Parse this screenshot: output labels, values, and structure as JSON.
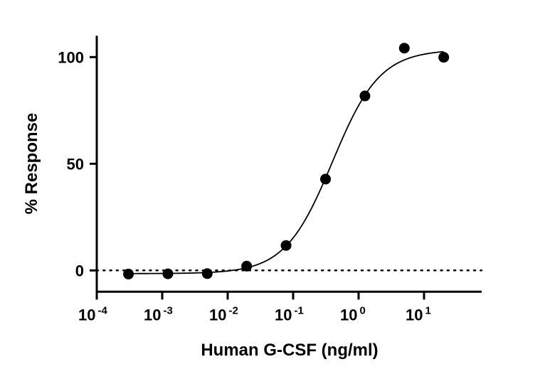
{
  "chart_data": {
    "type": "scatter",
    "title": "",
    "xlabel": "Human G-CSF (ng/ml)",
    "ylabel": "% Response",
    "x_scale": "log",
    "xlim": [
      0.0001,
      30
    ],
    "ylim": [
      -10,
      110
    ],
    "x_ticks": [
      {
        "base": "10",
        "exp": "-4",
        "value": 0.0001
      },
      {
        "base": "10",
        "exp": "-3",
        "value": 0.001
      },
      {
        "base": "10",
        "exp": "-2",
        "value": 0.01
      },
      {
        "base": "10",
        "exp": "-1",
        "value": 0.1
      },
      {
        "base": "10",
        "exp": "0",
        "value": 1
      },
      {
        "base": "10",
        "exp": "1",
        "value": 10
      }
    ],
    "y_ticks": [
      {
        "label": "0",
        "value": 0
      },
      {
        "label": "50",
        "value": 50
      },
      {
        "label": "100",
        "value": 100
      }
    ],
    "grid": false,
    "baseline_dotted": 0,
    "points": {
      "x": [
        0.000305,
        0.00122,
        0.00488,
        0.0195,
        0.078,
        0.3125,
        1.25,
        5,
        20
      ],
      "y": [
        -1.7,
        -1.6,
        -1.5,
        2,
        11.7,
        42.8,
        81.8,
        104.2,
        99.9
      ]
    },
    "fit": {
      "model": "4PL",
      "bottom": -1.5,
      "top": 103.5,
      "ec50": 0.4,
      "hill": 1.2
    },
    "color": "#000000"
  }
}
